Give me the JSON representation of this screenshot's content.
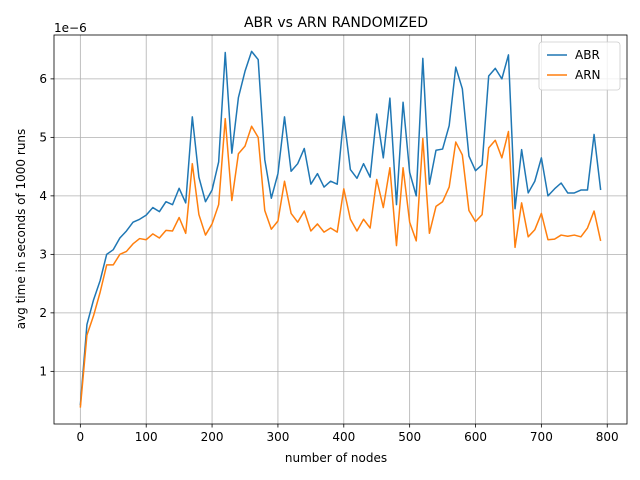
{
  "chart_data": {
    "type": "line",
    "title": "ABR vs ARN RANDOMIZED",
    "xlabel": "number of nodes",
    "ylabel": "avg time in seconds of 1000 runs",
    "y_offset_label": "1e−6",
    "xlim": [
      -40,
      830
    ],
    "ylim": [
      0.1,
      6.75
    ],
    "xticks": [
      0,
      100,
      200,
      300,
      400,
      500,
      600,
      700,
      800
    ],
    "yticks": [
      1,
      2,
      3,
      4,
      5,
      6
    ],
    "grid": true,
    "legend_position": "top-right",
    "x": [
      0,
      10,
      20,
      30,
      40,
      50,
      60,
      70,
      80,
      90,
      100,
      110,
      120,
      130,
      140,
      150,
      160,
      170,
      180,
      190,
      200,
      210,
      220,
      230,
      240,
      250,
      260,
      270,
      280,
      290,
      300,
      310,
      320,
      330,
      340,
      350,
      360,
      370,
      380,
      390,
      400,
      410,
      420,
      430,
      440,
      450,
      460,
      470,
      480,
      490,
      500,
      510,
      520,
      530,
      540,
      550,
      560,
      570,
      580,
      590,
      600,
      610,
      620,
      630,
      640,
      650,
      660,
      670,
      680,
      690,
      700,
      710,
      720,
      730,
      740,
      750,
      760,
      770,
      780,
      790
    ],
    "series": [
      {
        "name": "ABR",
        "color": "#1f77b4",
        "values": [
          0.42,
          1.8,
          2.22,
          2.55,
          3.0,
          3.08,
          3.28,
          3.4,
          3.55,
          3.6,
          3.67,
          3.8,
          3.73,
          3.9,
          3.85,
          4.13,
          3.88,
          5.35,
          4.32,
          3.9,
          4.1,
          4.58,
          6.45,
          4.73,
          5.68,
          6.13,
          6.47,
          6.33,
          4.62,
          3.96,
          4.38,
          5.35,
          4.42,
          4.55,
          4.81,
          4.2,
          4.38,
          4.15,
          4.25,
          4.2,
          5.36,
          4.45,
          4.3,
          4.55,
          4.32,
          5.4,
          4.65,
          5.67,
          3.85,
          5.6,
          4.4,
          4.0,
          6.35,
          4.2,
          4.78,
          4.8,
          5.2,
          6.2,
          5.83,
          4.68,
          4.43,
          4.53,
          6.05,
          6.18,
          6.0,
          6.41,
          3.78,
          4.79,
          4.05,
          4.25,
          4.65,
          4.0,
          4.12,
          4.22,
          4.05,
          4.05,
          4.1,
          4.1,
          5.05,
          4.1
        ]
      },
      {
        "name": "ARN",
        "color": "#ff7f0e",
        "values": [
          0.38,
          1.62,
          1.95,
          2.35,
          2.82,
          2.82,
          3.0,
          3.05,
          3.18,
          3.27,
          3.25,
          3.35,
          3.28,
          3.41,
          3.4,
          3.63,
          3.36,
          4.55,
          3.68,
          3.33,
          3.52,
          3.85,
          5.32,
          3.92,
          4.72,
          4.85,
          5.19,
          5.0,
          3.75,
          3.43,
          3.57,
          4.25,
          3.7,
          3.55,
          3.74,
          3.4,
          3.52,
          3.38,
          3.45,
          3.38,
          4.12,
          3.6,
          3.4,
          3.6,
          3.45,
          4.28,
          3.8,
          4.48,
          3.15,
          4.48,
          3.55,
          3.23,
          4.98,
          3.36,
          3.82,
          3.9,
          4.15,
          4.92,
          4.7,
          3.75,
          3.56,
          3.68,
          4.82,
          4.95,
          4.65,
          5.1,
          3.12,
          3.88,
          3.3,
          3.42,
          3.7,
          3.25,
          3.26,
          3.33,
          3.31,
          3.33,
          3.3,
          3.45,
          3.74,
          3.23
        ]
      }
    ]
  }
}
